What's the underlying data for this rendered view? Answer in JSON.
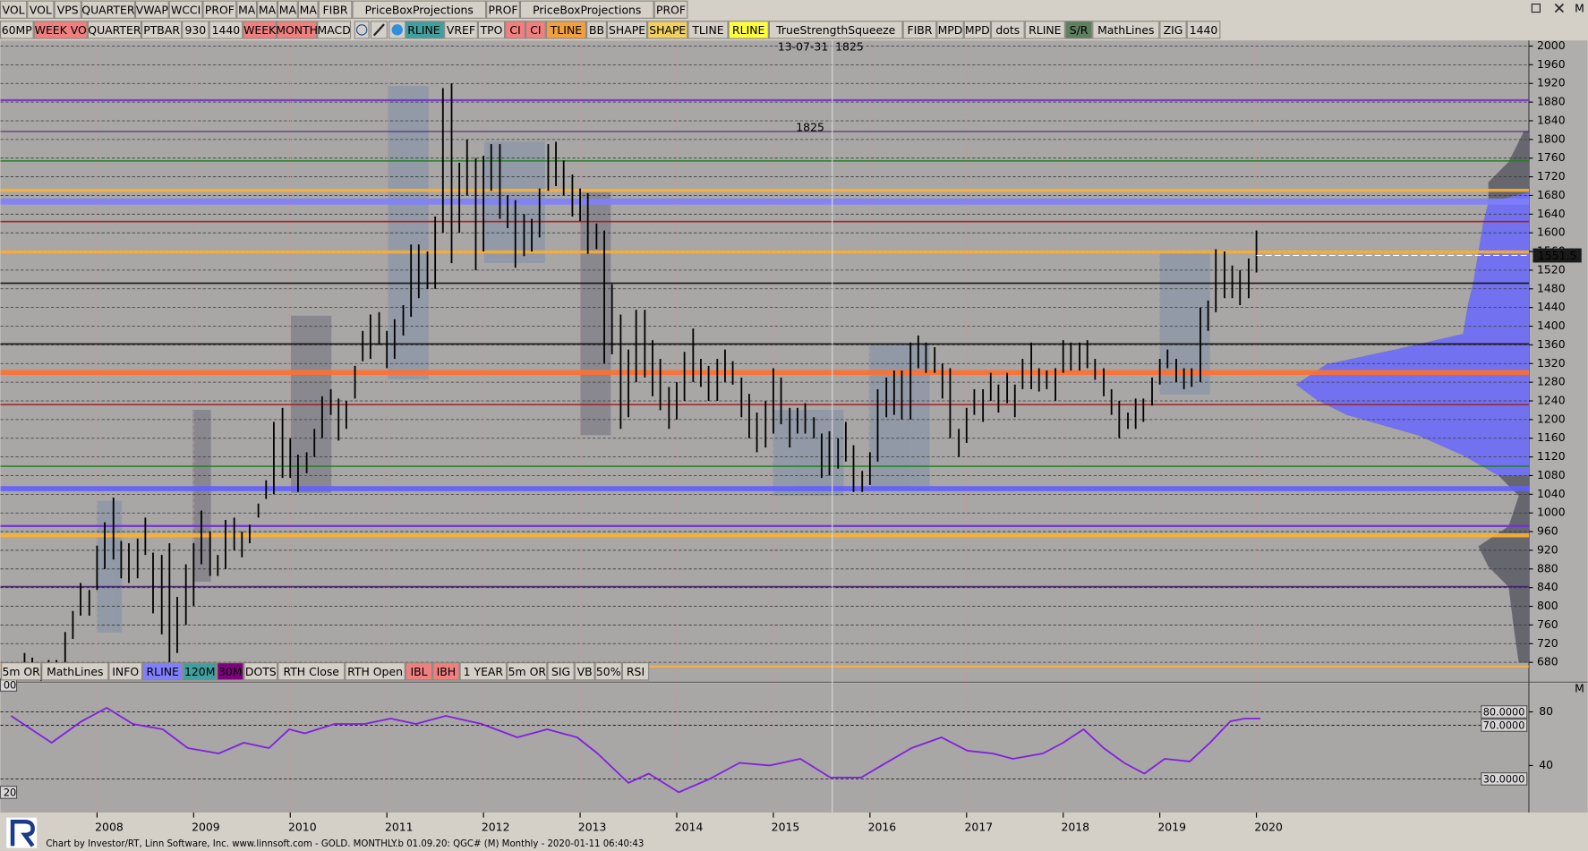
{
  "toolbar_top": [
    {
      "label": "VOL",
      "bg": "#d4d0c8"
    },
    {
      "label": "VOL",
      "bg": "#d4d0c8"
    },
    {
      "label": "VPS",
      "bg": "#d4d0c8"
    },
    {
      "label": "QUARTER",
      "bg": "#d4d0c8"
    },
    {
      "label": "VWAP",
      "bg": "#d4d0c8"
    },
    {
      "label": "WCCI",
      "bg": "#d4d0c8"
    },
    {
      "label": "PROF",
      "bg": "#d4d0c8"
    },
    {
      "label": "MA",
      "bg": "#d4d0c8"
    },
    {
      "label": "MA",
      "bg": "#d4d0c8"
    },
    {
      "label": "MA",
      "bg": "#d4d0c8"
    },
    {
      "label": "MA",
      "bg": "#d4d0c8"
    },
    {
      "label": "FIBR",
      "bg": "#d4d0c8"
    },
    {
      "label": "PriceBoxProjections",
      "bg": "#d4d0c8"
    },
    {
      "label": "PROF",
      "bg": "#d4d0c8"
    },
    {
      "label": "PriceBoxProjections",
      "bg": "#d4d0c8"
    },
    {
      "label": "PROF",
      "bg": "#d4d0c8"
    }
  ],
  "toolbar_main": [
    {
      "label": "60MP",
      "bg": "#d4d0c8"
    },
    {
      "label": "WEEK VO",
      "bg": "#f08080"
    },
    {
      "label": "QUARTER",
      "bg": "#d4d0c8"
    },
    {
      "label": "PTBAR",
      "bg": "#d4d0c8"
    },
    {
      "label": "930",
      "bg": "#d4d0c8"
    },
    {
      "label": "1440",
      "bg": "#d4d0c8"
    },
    {
      "label": "WEEK",
      "bg": "#f08080"
    },
    {
      "label": "MONTH",
      "bg": "#f08080"
    },
    {
      "label": "MACD",
      "bg": "#d4d0c8"
    },
    {
      "label": "RLINE",
      "bg": "#40a0a0"
    },
    {
      "label": "VREF",
      "bg": "#d4d0c8"
    },
    {
      "label": "TPO",
      "bg": "#d4d0c8"
    },
    {
      "label": "CI",
      "bg": "#f08080"
    },
    {
      "label": "CI",
      "bg": "#f08080"
    },
    {
      "label": "TLINE",
      "bg": "#f0a040"
    },
    {
      "label": "BB",
      "bg": "#d4d0c8"
    },
    {
      "label": "SHAPE",
      "bg": "#d4d0c8"
    },
    {
      "label": "SHAPE",
      "bg": "#f0d060"
    },
    {
      "label": "TLINE",
      "bg": "#d4d0c8"
    },
    {
      "label": "RLINE",
      "bg": "#ffff40"
    },
    {
      "label": "TrueStrengthSqueeze",
      "bg": "#d4d0c8"
    },
    {
      "label": "FIBR",
      "bg": "#d4d0c8"
    },
    {
      "label": "MPD",
      "bg": "#d4d0c8"
    },
    {
      "label": "MPD",
      "bg": "#d4d0c8"
    },
    {
      "label": "dots",
      "bg": "#d4d0c8"
    },
    {
      "label": "RLINE",
      "bg": "#d4d0c8"
    },
    {
      "label": "S/R",
      "bg": "#5f7f5f"
    },
    {
      "label": "MathLines",
      "bg": "#d4d0c8"
    },
    {
      "label": "ZIG",
      "bg": "#d4d0c8"
    },
    {
      "label": "1440",
      "bg": "#d4d0c8"
    }
  ],
  "toolbar_bottom": [
    {
      "label": "5m OR",
      "bg": "#d4d0c8"
    },
    {
      "label": "MathLines",
      "bg": "#d4d0c8"
    },
    {
      "label": "INFO",
      "bg": "#d4d0c8"
    },
    {
      "label": "RLINE",
      "bg": "#8080ff"
    },
    {
      "label": "120M",
      "bg": "#40a0a0"
    },
    {
      "label": "30M",
      "bg": "#800080"
    },
    {
      "label": "DOTS",
      "bg": "#d4d0c8"
    },
    {
      "label": "RTH Close",
      "bg": "#d4d0c8"
    },
    {
      "label": "RTH Open",
      "bg": "#d4d0c8"
    },
    {
      "label": "IBL",
      "bg": "#f08080"
    },
    {
      "label": "IBH",
      "bg": "#f08080"
    },
    {
      "label": "1 YEAR",
      "bg": "#d4d0c8"
    },
    {
      "label": "5m OR",
      "bg": "#d4d0c8"
    },
    {
      "label": "SIG",
      "bg": "#d4d0c8"
    },
    {
      "label": "VB",
      "bg": "#d4d0c8"
    },
    {
      "label": "50%",
      "bg": "#d4d0c8"
    },
    {
      "label": "RSI",
      "bg": "#d4d0c8"
    }
  ],
  "panel_markers": [
    "M",
    "M"
  ],
  "footer": "Chart by Investor/RT, Linn Software, Inc. www.linnsoft.com - GOLD. MONTHLY.b    01.09.20: QGC# (M) Monthly - 2020-01-11 06:40:43",
  "chart_data": [
    {
      "type": "ohlc",
      "color": "#000000",
      "x": [
        2007.17,
        2007.25,
        2007.33,
        2007.42,
        2007.5,
        2007.58,
        2007.67,
        2007.75,
        2007.83,
        2007.92,
        2008,
        2008.08,
        2008.17,
        2008.25,
        2008.33,
        2008.42,
        2008.5,
        2008.58,
        2008.67,
        2008.75,
        2008.83,
        2008.92,
        2009,
        2009.08,
        2009.17,
        2009.25,
        2009.33,
        2009.42,
        2009.5,
        2009.58,
        2009.67,
        2009.75,
        2009.83,
        2009.92,
        2010,
        2010.08,
        2010.17,
        2010.25,
        2010.33,
        2010.42,
        2010.5,
        2010.58,
        2010.67,
        2010.75,
        2010.83,
        2010.92,
        2011,
        2011.08,
        2011.17,
        2011.25,
        2011.33,
        2011.42,
        2011.5,
        2011.58,
        2011.67,
        2011.75,
        2011.83,
        2011.92,
        2012,
        2012.08,
        2012.17,
        2012.25,
        2012.33,
        2012.42,
        2012.5,
        2012.58,
        2012.67,
        2012.75,
        2012.83,
        2012.92,
        2013,
        2013.08,
        2013.17,
        2013.25,
        2013.33,
        2013.42,
        2013.5,
        2013.58,
        2013.67,
        2013.75,
        2013.83,
        2013.92,
        2014,
        2014.08,
        2014.17,
        2014.25,
        2014.33,
        2014.42,
        2014.5,
        2014.58,
        2014.67,
        2014.75,
        2014.83,
        2014.92,
        2015,
        2015.08,
        2015.17,
        2015.25,
        2015.33,
        2015.42,
        2015.5,
        2015.58,
        2015.67,
        2015.75,
        2015.83,
        2015.92,
        2016,
        2016.08,
        2016.17,
        2016.25,
        2016.33,
        2016.42,
        2016.5,
        2016.58,
        2016.67,
        2016.75,
        2016.83,
        2016.92,
        2017,
        2017.08,
        2017.17,
        2017.25,
        2017.33,
        2017.42,
        2017.5,
        2017.58,
        2017.67,
        2017.75,
        2017.83,
        2017.92,
        2018,
        2018.08,
        2018.17,
        2018.25,
        2018.33,
        2018.42,
        2018.5,
        2018.58,
        2018.67,
        2018.75,
        2018.83,
        2018.92,
        2019,
        2019.08,
        2019.17,
        2019.25,
        2019.33,
        2019.42,
        2019.5,
        2019.58,
        2019.67,
        2019.75,
        2019.83,
        2019.92,
        2020
      ],
      "high": [
        675,
        700,
        690,
        670,
        685,
        685,
        745,
        790,
        850,
        835,
        930,
        980,
        1033,
        940,
        935,
        945,
        990,
        915,
        910,
        935,
        820,
        890,
        935,
        1005,
        960,
        910,
        985,
        990,
        960,
        975,
        1020,
        1070,
        1195,
        1225,
        1160,
        1125,
        1130,
        1180,
        1250,
        1265,
        1245,
        1240,
        1315,
        1390,
        1425,
        1430,
        1390,
        1415,
        1445,
        1575,
        1575,
        1560,
        1635,
        1910,
        1920,
        1750,
        1800,
        1760,
        1765,
        1790,
        1790,
        1680,
        1670,
        1640,
        1630,
        1695,
        1790,
        1795,
        1755,
        1725,
        1695,
        1685,
        1620,
        1605,
        1490,
        1425,
        1350,
        1435,
        1435,
        1370,
        1330,
        1270,
        1280,
        1345,
        1395,
        1330,
        1315,
        1330,
        1350,
        1325,
        1290,
        1255,
        1215,
        1240,
        1310,
        1290,
        1225,
        1225,
        1235,
        1205,
        1170,
        1175,
        1160,
        1195,
        1145,
        1090,
        1130,
        1265,
        1290,
        1305,
        1305,
        1365,
        1380,
        1365,
        1355,
        1320,
        1310,
        1180,
        1225,
        1265,
        1265,
        1300,
        1275,
        1300,
        1275,
        1330,
        1365,
        1310,
        1305,
        1310,
        1370,
        1365,
        1365,
        1370,
        1330,
        1310,
        1265,
        1240,
        1215,
        1245,
        1245,
        1290,
        1330,
        1350,
        1330,
        1310,
        1310,
        1440,
        1455,
        1565,
        1560,
        1530,
        1520,
        1545,
        1605
      ],
      "low": [
        645,
        675,
        650,
        640,
        645,
        645,
        670,
        730,
        780,
        780,
        835,
        880,
        900,
        860,
        850,
        860,
        910,
        785,
        740,
        680,
        700,
        760,
        800,
        890,
        865,
        865,
        880,
        920,
        905,
        935,
        990,
        1030,
        1040,
        1075,
        1075,
        1045,
        1085,
        1120,
        1160,
        1210,
        1155,
        1180,
        1245,
        1325,
        1330,
        1360,
        1310,
        1330,
        1380,
        1420,
        1460,
        1480,
        1480,
        1600,
        1535,
        1600,
        1680,
        1520,
        1560,
        1690,
        1630,
        1610,
        1525,
        1550,
        1560,
        1590,
        1690,
        1700,
        1680,
        1635,
        1625,
        1555,
        1565,
        1320,
        1340,
        1180,
        1205,
        1280,
        1290,
        1250,
        1220,
        1180,
        1200,
        1240,
        1280,
        1270,
        1240,
        1240,
        1280,
        1275,
        1205,
        1160,
        1130,
        1140,
        1170,
        1190,
        1140,
        1170,
        1170,
        1160,
        1075,
        1080,
        1095,
        1110,
        1045,
        1045,
        1060,
        1110,
        1205,
        1210,
        1200,
        1200,
        1310,
        1300,
        1300,
        1245,
        1160,
        1120,
        1150,
        1210,
        1195,
        1240,
        1215,
        1235,
        1205,
        1265,
        1265,
        1260,
        1265,
        1240,
        1300,
        1305,
        1305,
        1310,
        1285,
        1250,
        1210,
        1160,
        1180,
        1180,
        1195,
        1230,
        1275,
        1310,
        1280,
        1265,
        1270,
        1280,
        1390,
        1430,
        1460,
        1460,
        1445,
        1460,
        1515
      ],
      "xlim": [
        2007,
        2022.82
      ],
      "xticks": [
        2008,
        2009,
        2010,
        2011,
        2012,
        2013,
        2014,
        2015,
        2016,
        2017,
        2018,
        2019,
        2020
      ],
      "ylim": [
        640,
        2012
      ],
      "yticks": [
        680,
        720,
        760,
        800,
        840,
        880,
        920,
        960,
        1000,
        1040,
        1080,
        1120,
        1160,
        1200,
        1240,
        1280,
        1320,
        1360,
        1400,
        1440,
        1480,
        1520,
        1560,
        1600,
        1640,
        1680,
        1720,
        1760,
        1800,
        1840,
        1880,
        1920,
        1960,
        2000
      ],
      "grid": true,
      "levels": [
        {
          "value": 1884,
          "color": "#7030d0",
          "width": 2
        },
        {
          "value": 1817,
          "color": "#402070",
          "width": 1
        },
        {
          "value": 1754,
          "color": "#208020",
          "width": 1.5
        },
        {
          "value": 1691,
          "color": "#ffb030",
          "width": 3
        },
        {
          "value": 1667,
          "color": "#8080ff",
          "width": 6
        },
        {
          "value": 1624,
          "color": "#a02020",
          "width": 1.5
        },
        {
          "value": 1559,
          "color": "#ffb030",
          "width": 3
        },
        {
          "value": 1492,
          "color": "#101010",
          "width": 1.5
        },
        {
          "value": 1362,
          "color": "#101010",
          "width": 1.5
        },
        {
          "value": 1301,
          "color": "#ff7030",
          "width": 5
        },
        {
          "value": 1232,
          "color": "#a02020",
          "width": 1.5
        },
        {
          "value": 1100,
          "color": "#208020",
          "width": 1.5
        },
        {
          "value": 1052,
          "color": "#6060ff",
          "width": 5
        },
        {
          "value": 972,
          "color": "#7030d0",
          "width": 2
        },
        {
          "value": 952,
          "color": "#ffb030",
          "width": 4
        },
        {
          "value": 842,
          "color": "#402070",
          "width": 1.5
        },
        {
          "value": 671,
          "color": "#ffb030",
          "width": 2
        }
      ],
      "cursor_x": 2015.61,
      "cursor_label": "13-07-31",
      "cursor_value": 1825,
      "level_label": 1825,
      "last": 1551.5
    },
    {
      "type": "line",
      "color": "#8020e0",
      "x": [
        2007.11,
        2007.53,
        2007.84,
        2008.1,
        2008.37,
        2008.68,
        2008.94,
        2009.26,
        2009.52,
        2009.78,
        2009.99,
        2010.15,
        2010.46,
        2010.77,
        2011.04,
        2011.3,
        2011.61,
        2011.98,
        2012.35,
        2012.66,
        2012.97,
        2013.18,
        2013.5,
        2013.71,
        2014.02,
        2014.34,
        2014.65,
        2014.96,
        2015.28,
        2015.59,
        2015.91,
        2016.12,
        2016.43,
        2016.74,
        2017.01,
        2017.27,
        2017.48,
        2017.79,
        2018,
        2018.21,
        2018.42,
        2018.63,
        2018.84,
        2019.05,
        2019.31,
        2019.52,
        2019.73,
        2019.88,
        2020.04
      ],
      "values": [
        77,
        57,
        73,
        83,
        71,
        67,
        53,
        49,
        57,
        53,
        67,
        64,
        71,
        71,
        75,
        71,
        77,
        71,
        61,
        67,
        61,
        49,
        27,
        34,
        20,
        30,
        42,
        40,
        45,
        31,
        31,
        40,
        53,
        61,
        51,
        49,
        45,
        49,
        57,
        67,
        53,
        42,
        34,
        45,
        43,
        57,
        73,
        75,
        75
      ],
      "ylim": [
        20,
        100
      ],
      "yticks": [
        80,
        40
      ],
      "reference_lines": [
        {
          "value": 80,
          "label": "80.0000"
        },
        {
          "value": 70,
          "label": "70.0000"
        },
        {
          "value": 30,
          "label": "30.0000"
        }
      ],
      "left_labels": [
        {
          "value": 100,
          "label": "00"
        },
        {
          "value": 20,
          "label": "20"
        }
      ]
    }
  ]
}
